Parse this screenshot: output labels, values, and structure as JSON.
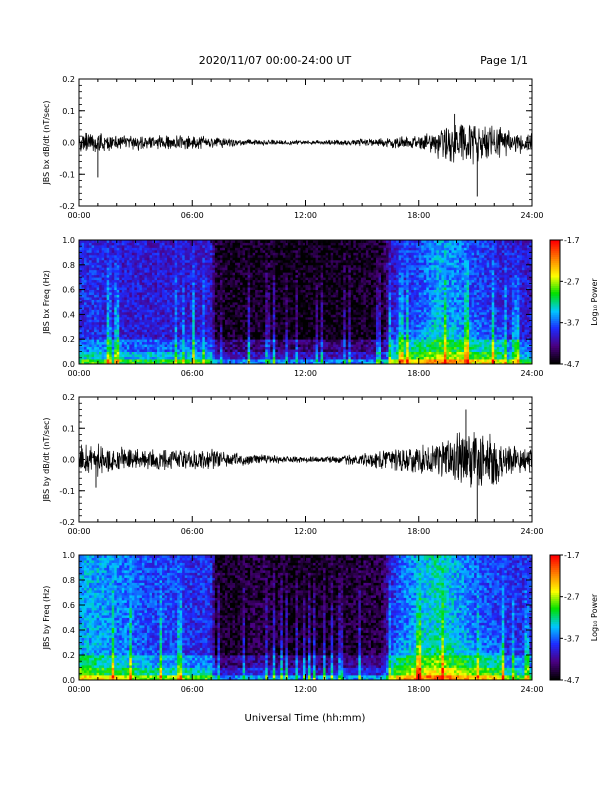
{
  "header": {
    "title": "2020/11/07  00:00-24:00 UT",
    "page": "Page 1/1"
  },
  "colors": {
    "trace": "#000000",
    "spectrogram_map": [
      "#000000",
      "#4b0082",
      "#1e2bff",
      "#00c8ff",
      "#00e000",
      "#ffff00",
      "#ff8000",
      "#ff0000"
    ]
  },
  "chart_data": [
    {
      "type": "line",
      "ylabel": "JBS bx dB/dt (nT/sec)",
      "xlim": [
        0,
        24
      ],
      "ylim": [
        -0.2,
        0.2
      ],
      "yticks": [
        "0.2",
        "0.1",
        "0.0",
        "-0.1",
        "-0.2"
      ],
      "yticks_values": [
        0.2,
        0.1,
        0.0,
        -0.1,
        -0.2
      ],
      "xticks": [
        "00:00",
        "06:00",
        "12:00",
        "18:00",
        "24:00"
      ],
      "xticks_values": [
        0,
        6,
        12,
        18,
        24
      ],
      "x_hours": [
        0,
        1,
        2,
        3,
        4,
        5,
        6,
        7,
        8,
        9,
        10,
        11,
        12,
        13,
        14,
        15,
        16,
        17,
        18,
        19,
        20,
        21,
        22,
        23,
        24
      ],
      "amplitude": [
        0.03,
        0.025,
        0.02,
        0.02,
        0.02,
        0.02,
        0.02,
        0.015,
        0.012,
        0.01,
        0.008,
        0.007,
        0.006,
        0.006,
        0.008,
        0.01,
        0.012,
        0.015,
        0.02,
        0.04,
        0.06,
        0.06,
        0.05,
        0.03,
        0.025
      ],
      "spikes": [
        {
          "x": 1.0,
          "y": -0.11
        },
        {
          "x": 21.1,
          "y": -0.17
        },
        {
          "x": 19.9,
          "y": 0.09
        }
      ]
    },
    {
      "type": "heatmap",
      "ylabel": "JBS bx Freq (Hz)",
      "xlim": [
        0,
        24
      ],
      "ylim": [
        0.0,
        1.0
      ],
      "yticks": [
        "1.0",
        "0.8",
        "0.6",
        "0.4",
        "0.2",
        "0.0"
      ],
      "yticks_values": [
        1.0,
        0.8,
        0.6,
        0.4,
        0.2,
        0.0
      ],
      "xticks": [
        "00:00",
        "06:00",
        "12:00",
        "18:00",
        "24:00"
      ],
      "xticks_values": [
        0,
        6,
        12,
        18,
        24
      ],
      "colorbar": {
        "label": "Log₁₀ Power",
        "range": [
          -4.7,
          -1.7
        ],
        "ticks": [
          "-1.7",
          "-2.7",
          "-3.7",
          "-4.7"
        ]
      },
      "x_hours": [
        0,
        1,
        2,
        3,
        4,
        5,
        6,
        7,
        7.3,
        8,
        9,
        10,
        11,
        12,
        13,
        14,
        15,
        16,
        16.5,
        17,
        18,
        19,
        20,
        21,
        22,
        23,
        24
      ],
      "background_level": [
        -3.9,
        -3.9,
        -4.0,
        -4.0,
        -4.0,
        -4.0,
        -4.0,
        -4.0,
        -4.6,
        -4.6,
        -4.6,
        -4.6,
        -4.65,
        -4.65,
        -4.65,
        -4.6,
        -4.6,
        -4.6,
        -4.1,
        -3.9,
        -3.8,
        -3.5,
        -3.6,
        -3.8,
        -3.9,
        -4.0,
        -4.0
      ]
    },
    {
      "type": "line",
      "ylabel": "JBS by dB/dt (nT/sec)",
      "xlim": [
        0,
        24
      ],
      "ylim": [
        -0.2,
        0.2
      ],
      "yticks": [
        "0.2",
        "0.1",
        "0.0",
        "-0.1",
        "-0.2"
      ],
      "yticks_values": [
        0.2,
        0.1,
        0.0,
        -0.1,
        -0.2
      ],
      "xticks": [
        "00:00",
        "06:00",
        "12:00",
        "18:00",
        "24:00"
      ],
      "xticks_values": [
        0,
        6,
        12,
        18,
        24
      ],
      "x_hours": [
        0,
        1,
        2,
        3,
        4,
        5,
        6,
        7,
        8,
        9,
        10,
        11,
        12,
        13,
        14,
        15,
        16,
        17,
        18,
        19,
        20,
        21,
        22,
        23,
        24
      ],
      "amplitude": [
        0.04,
        0.045,
        0.035,
        0.03,
        0.03,
        0.03,
        0.03,
        0.03,
        0.02,
        0.015,
        0.012,
        0.01,
        0.008,
        0.008,
        0.012,
        0.02,
        0.025,
        0.03,
        0.04,
        0.05,
        0.08,
        0.09,
        0.07,
        0.04,
        0.035
      ],
      "spikes": [
        {
          "x": 0.9,
          "y": -0.09
        },
        {
          "x": 21.1,
          "y": -0.21
        },
        {
          "x": 20.5,
          "y": 0.16
        }
      ]
    },
    {
      "type": "heatmap",
      "ylabel": "JBS by Freq (Hz)",
      "xlim": [
        0,
        24
      ],
      "ylim": [
        0.0,
        1.0
      ],
      "yticks": [
        "1.0",
        "0.8",
        "0.6",
        "0.4",
        "0.2",
        "0.0"
      ],
      "yticks_values": [
        1.0,
        0.8,
        0.6,
        0.4,
        0.2,
        0.0
      ],
      "xticks": [
        "00:00",
        "06:00",
        "12:00",
        "18:00",
        "24:00"
      ],
      "xticks_values": [
        0,
        6,
        12,
        18,
        24
      ],
      "colorbar": {
        "label": "Log₁₀ Power",
        "range": [
          -4.7,
          -1.7
        ],
        "ticks": [
          "-1.7",
          "-2.7",
          "-3.7",
          "-4.7"
        ]
      },
      "x_hours": [
        0,
        1,
        2,
        3,
        4,
        5,
        6,
        7,
        7.3,
        8,
        9,
        10,
        11,
        12,
        13,
        14,
        15,
        16,
        16.5,
        17,
        18,
        19,
        20,
        21,
        22,
        23,
        24
      ],
      "background_level": [
        -3.5,
        -3.5,
        -3.6,
        -3.7,
        -3.8,
        -3.8,
        -3.9,
        -3.9,
        -4.6,
        -4.6,
        -4.5,
        -4.5,
        -4.6,
        -4.6,
        -4.6,
        -4.55,
        -4.5,
        -4.5,
        -4.0,
        -3.7,
        -3.5,
        -3.3,
        -3.5,
        -3.7,
        -3.8,
        -3.9,
        -3.9
      ]
    }
  ],
  "footer": {
    "xlabel": "Universal Time (hh:mm)"
  }
}
